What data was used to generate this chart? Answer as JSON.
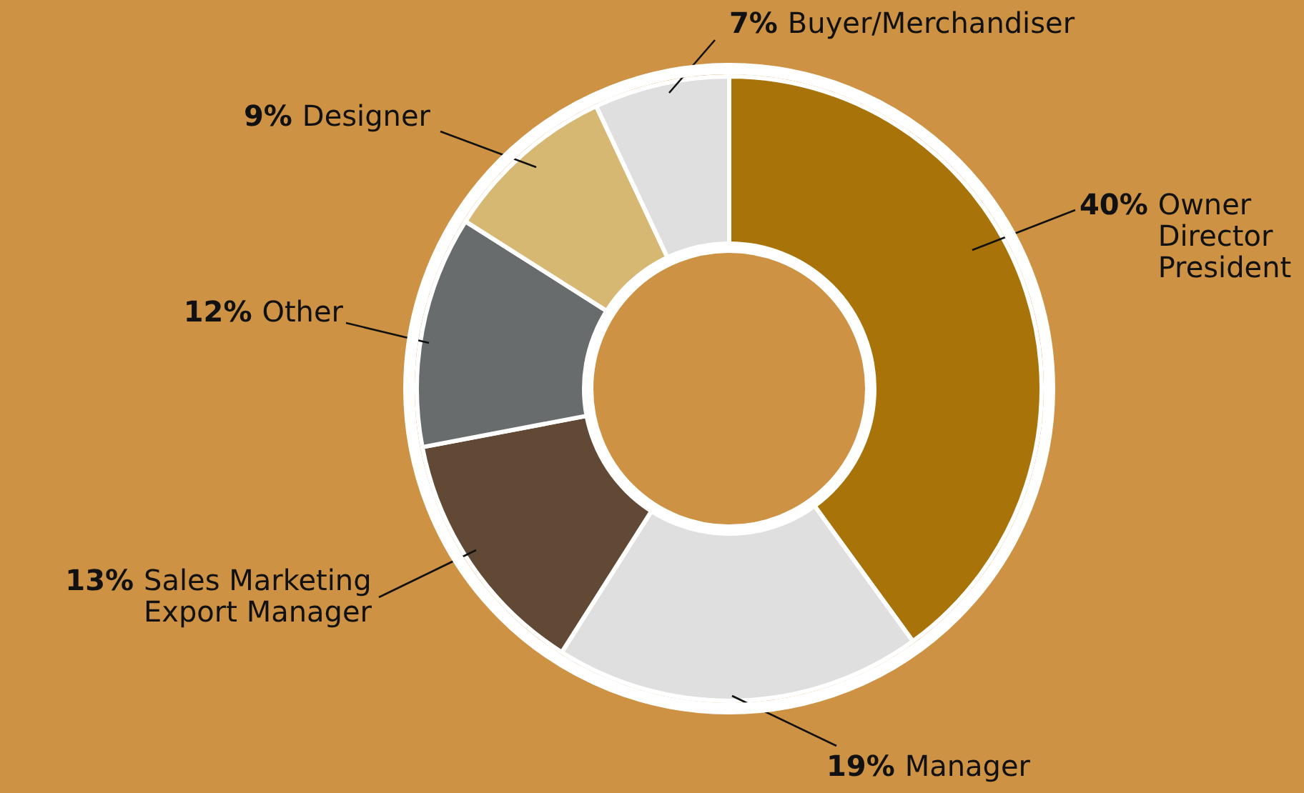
{
  "chart_data": {
    "type": "donut",
    "categories": [
      "Owner\nDirector\nPresident",
      "Manager",
      "Sales Marketing\nExport Manager",
      "Other",
      "Designer",
      "Buyer/Merchandiser"
    ],
    "values": [
      40,
      19,
      13,
      12,
      9,
      7
    ],
    "value_labels": [
      "40%",
      "19%",
      "13%",
      "12%",
      "9%",
      "7%"
    ],
    "colors": [
      "#a87308",
      "#e0dfe0",
      "#624936",
      "#686c6d",
      "#d6b872",
      "#e0dfe0"
    ],
    "legend": false
  }
}
